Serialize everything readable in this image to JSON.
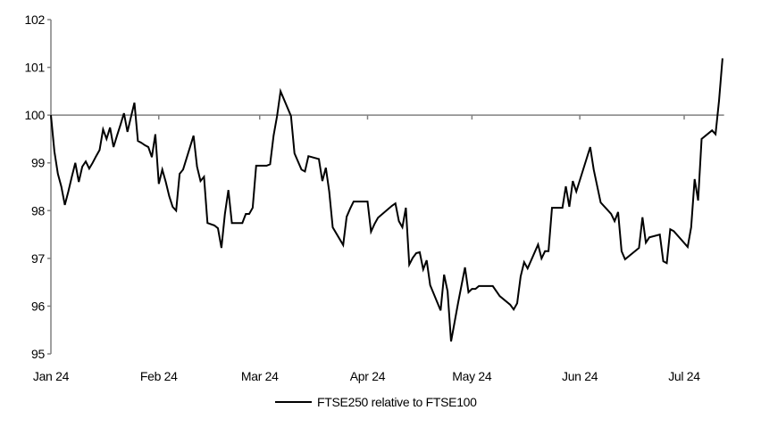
{
  "chart_data": {
    "type": "line",
    "title": "",
    "xlabel": "",
    "ylabel": "",
    "xlim": [
      "2024-01-01",
      "2024-07-14"
    ],
    "ylim": [
      95,
      102
    ],
    "y_ticks": [
      95,
      96,
      97,
      98,
      99,
      100,
      101,
      102
    ],
    "x_ticks": [
      {
        "date": "2024-01-01",
        "label": "Jan 24"
      },
      {
        "date": "2024-02-01",
        "label": "Feb 24"
      },
      {
        "date": "2024-03-01",
        "label": "Mar 24"
      },
      {
        "date": "2024-04-01",
        "label": "Apr 24"
      },
      {
        "date": "2024-05-01",
        "label": "May 24"
      },
      {
        "date": "2024-06-01",
        "label": "Jun 24"
      },
      {
        "date": "2024-07-01",
        "label": "Jul 24"
      }
    ],
    "x_axis_crosses_at": 100,
    "grid": false,
    "legend_position": "bottom",
    "line_color": "#000000",
    "axis_color": "#808080",
    "series": [
      {
        "name": "FTSE250 relative to FTSE100",
        "points": [
          [
            "2024-01-01",
            100.0
          ],
          [
            "2024-01-02",
            99.24
          ],
          [
            "2024-01-03",
            98.77
          ],
          [
            "2024-01-04",
            98.5
          ],
          [
            "2024-01-05",
            98.12
          ],
          [
            "2024-01-06",
            98.4
          ],
          [
            "2024-01-07",
            98.71
          ],
          [
            "2024-01-08",
            99.0
          ],
          [
            "2024-01-09",
            98.6
          ],
          [
            "2024-01-10",
            98.92
          ],
          [
            "2024-01-11",
            99.03
          ],
          [
            "2024-01-12",
            98.88
          ],
          [
            "2024-01-13",
            99.0
          ],
          [
            "2024-01-14",
            99.14
          ],
          [
            "2024-01-15",
            99.27
          ],
          [
            "2024-01-16",
            99.7
          ],
          [
            "2024-01-17",
            99.5
          ],
          [
            "2024-01-18",
            99.74
          ],
          [
            "2024-01-19",
            99.33
          ],
          [
            "2024-01-20",
            99.57
          ],
          [
            "2024-01-21",
            99.8
          ],
          [
            "2024-01-22",
            100.04
          ],
          [
            "2024-01-23",
            99.65
          ],
          [
            "2024-01-24",
            99.96
          ],
          [
            "2024-01-25",
            100.26
          ],
          [
            "2024-01-26",
            99.46
          ],
          [
            "2024-01-27",
            99.42
          ],
          [
            "2024-01-28",
            99.37
          ],
          [
            "2024-01-29",
            99.33
          ],
          [
            "2024-01-30",
            99.12
          ],
          [
            "2024-01-31",
            99.6
          ],
          [
            "2024-02-01",
            98.56
          ],
          [
            "2024-02-02",
            98.86
          ],
          [
            "2024-02-03",
            98.6
          ],
          [
            "2024-02-04",
            98.3
          ],
          [
            "2024-02-05",
            98.08
          ],
          [
            "2024-02-06",
            98.0
          ],
          [
            "2024-02-07",
            98.77
          ],
          [
            "2024-02-08",
            98.86
          ],
          [
            "2024-02-11",
            99.57
          ],
          [
            "2024-02-12",
            98.92
          ],
          [
            "2024-02-13",
            98.62
          ],
          [
            "2024-02-14",
            98.71
          ],
          [
            "2024-02-15",
            97.74
          ],
          [
            "2024-02-17",
            97.69
          ],
          [
            "2024-02-18",
            97.63
          ],
          [
            "2024-02-19",
            97.22
          ],
          [
            "2024-02-20",
            97.93
          ],
          [
            "2024-02-21",
            98.43
          ],
          [
            "2024-02-22",
            97.74
          ],
          [
            "2024-02-24",
            97.74
          ],
          [
            "2024-02-25",
            97.74
          ],
          [
            "2024-02-26",
            97.93
          ],
          [
            "2024-02-27",
            97.93
          ],
          [
            "2024-02-28",
            98.06
          ],
          [
            "2024-02-29",
            98.94
          ],
          [
            "2024-03-03",
            98.94
          ],
          [
            "2024-03-04",
            98.97
          ],
          [
            "2024-03-05",
            99.57
          ],
          [
            "2024-03-06",
            99.98
          ],
          [
            "2024-03-07",
            100.5
          ],
          [
            "2024-03-10",
            99.98
          ],
          [
            "2024-03-11",
            99.2
          ],
          [
            "2024-03-13",
            98.86
          ],
          [
            "2024-03-14",
            98.82
          ],
          [
            "2024-03-15",
            99.14
          ],
          [
            "2024-03-18",
            99.08
          ],
          [
            "2024-03-19",
            98.62
          ],
          [
            "2024-03-20",
            98.9
          ],
          [
            "2024-03-21",
            98.4
          ],
          [
            "2024-03-22",
            97.65
          ],
          [
            "2024-03-25",
            97.28
          ],
          [
            "2024-03-26",
            97.87
          ],
          [
            "2024-03-27",
            98.04
          ],
          [
            "2024-03-28",
            98.19
          ],
          [
            "2024-04-01",
            98.19
          ],
          [
            "2024-04-02",
            97.56
          ],
          [
            "2024-04-03",
            97.72
          ],
          [
            "2024-04-04",
            97.85
          ],
          [
            "2024-04-08",
            98.1
          ],
          [
            "2024-04-09",
            98.15
          ],
          [
            "2024-04-10",
            97.78
          ],
          [
            "2024-04-11",
            97.65
          ],
          [
            "2024-04-12",
            98.06
          ],
          [
            "2024-04-13",
            96.87
          ],
          [
            "2024-04-14",
            97.01
          ],
          [
            "2024-04-15",
            97.11
          ],
          [
            "2024-04-16",
            97.13
          ],
          [
            "2024-04-17",
            96.77
          ],
          [
            "2024-04-18",
            96.96
          ],
          [
            "2024-04-19",
            96.44
          ],
          [
            "2024-04-22",
            95.91
          ],
          [
            "2024-04-23",
            96.66
          ],
          [
            "2024-04-24",
            96.31
          ],
          [
            "2024-04-25",
            95.26
          ],
          [
            "2024-04-27",
            96.06
          ],
          [
            "2024-04-29",
            96.81
          ],
          [
            "2024-04-30",
            96.29
          ],
          [
            "2024-05-01",
            96.36
          ],
          [
            "2024-05-02",
            96.36
          ],
          [
            "2024-05-03",
            96.42
          ],
          [
            "2024-05-07",
            96.42
          ],
          [
            "2024-05-09",
            96.21
          ],
          [
            "2024-05-12",
            96.03
          ],
          [
            "2024-05-13",
            95.93
          ],
          [
            "2024-05-14",
            96.06
          ],
          [
            "2024-05-15",
            96.62
          ],
          [
            "2024-05-16",
            96.92
          ],
          [
            "2024-05-17",
            96.79
          ],
          [
            "2024-05-20",
            97.29
          ],
          [
            "2024-05-21",
            97.0
          ],
          [
            "2024-05-22",
            97.15
          ],
          [
            "2024-05-23",
            97.15
          ],
          [
            "2024-05-24",
            98.06
          ],
          [
            "2024-05-27",
            98.06
          ],
          [
            "2024-05-28",
            98.51
          ],
          [
            "2024-05-29",
            98.08
          ],
          [
            "2024-05-30",
            98.62
          ],
          [
            "2024-05-31",
            98.4
          ],
          [
            "2024-06-04",
            99.33
          ],
          [
            "2024-06-05",
            98.86
          ],
          [
            "2024-06-07",
            98.17
          ],
          [
            "2024-06-10",
            97.93
          ],
          [
            "2024-06-11",
            97.78
          ],
          [
            "2024-06-12",
            97.97
          ],
          [
            "2024-06-13",
            97.15
          ],
          [
            "2024-06-14",
            96.98
          ],
          [
            "2024-06-18",
            97.22
          ],
          [
            "2024-06-19",
            97.86
          ],
          [
            "2024-06-20",
            97.33
          ],
          [
            "2024-06-21",
            97.44
          ],
          [
            "2024-06-24",
            97.5
          ],
          [
            "2024-06-25",
            96.94
          ],
          [
            "2024-06-26",
            96.9
          ],
          [
            "2024-06-27",
            97.61
          ],
          [
            "2024-06-28",
            97.57
          ],
          [
            "2024-07-02",
            97.24
          ],
          [
            "2024-07-03",
            97.65
          ],
          [
            "2024-07-04",
            98.66
          ],
          [
            "2024-07-05",
            98.21
          ],
          [
            "2024-07-06",
            99.5
          ],
          [
            "2024-07-09",
            99.68
          ],
          [
            "2024-07-10",
            99.6
          ],
          [
            "2024-07-11",
            100.3
          ],
          [
            "2024-07-12",
            101.19
          ]
        ]
      }
    ]
  }
}
